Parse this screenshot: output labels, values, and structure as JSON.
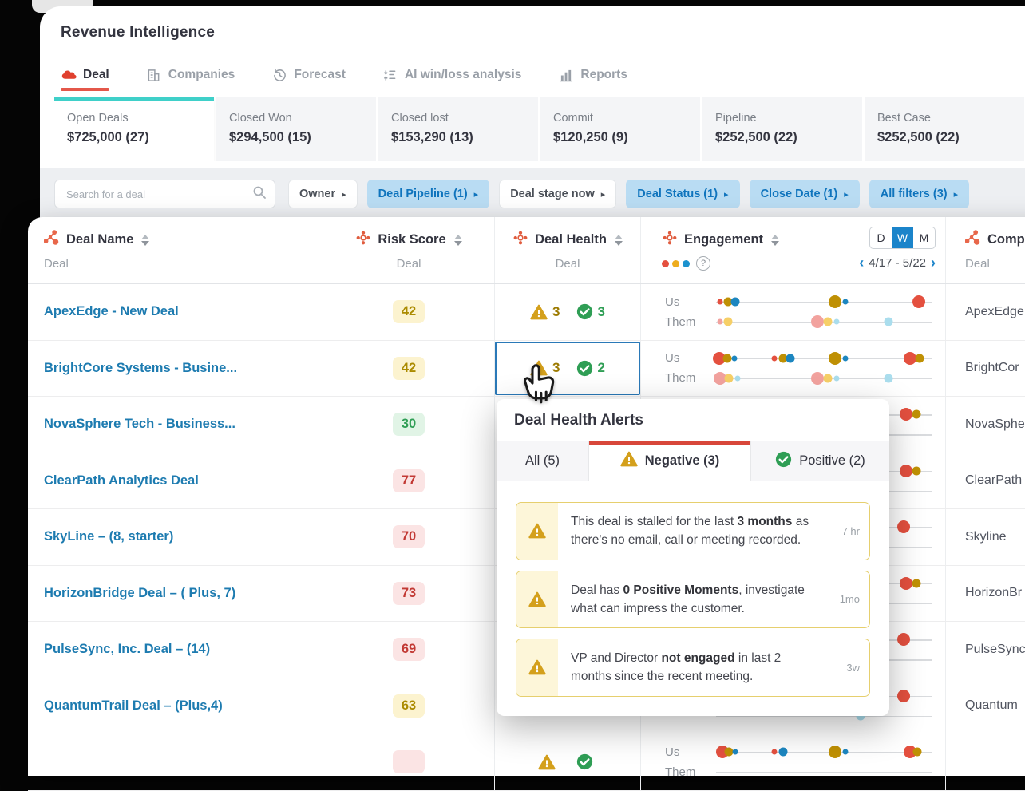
{
  "app": {
    "title": "Revenue Intelligence"
  },
  "tabs": [
    {
      "label": "Deal",
      "icon": "deal-icon",
      "active": true
    },
    {
      "label": "Companies",
      "icon": "companies-icon",
      "active": false
    },
    {
      "label": "Forecast",
      "icon": "forecast-icon",
      "active": false
    },
    {
      "label": "AI win/loss analysis",
      "icon": "ai-winloss-icon",
      "active": false
    },
    {
      "label": "Reports",
      "icon": "reports-icon",
      "active": false
    }
  ],
  "summary_cards": [
    {
      "label": "Open Deals",
      "value": "$725,000 (27)",
      "active": true
    },
    {
      "label": "Closed Won",
      "value": "$294,500 (15)",
      "active": false
    },
    {
      "label": "Closed lost",
      "value": "$153,290 (13)",
      "active": false
    },
    {
      "label": "Commit",
      "value": "$120,250 (9)",
      "active": false
    },
    {
      "label": "Pipeline",
      "value": "$252,500 (22)",
      "active": false
    },
    {
      "label": "Best Case",
      "value": "$252,500 (22)",
      "active": false
    }
  ],
  "filters": {
    "search_placeholder": "Search for a deal",
    "buttons": [
      {
        "label": "Owner",
        "active": false
      },
      {
        "label": "Deal Pipeline (1)",
        "active": true
      },
      {
        "label": "Deal stage now",
        "active": false
      },
      {
        "label": "Deal Status (1)",
        "active": true
      },
      {
        "label": "Close Date (1)",
        "active": true
      },
      {
        "label": "All filters (3)",
        "active": true
      }
    ]
  },
  "table": {
    "columns": [
      {
        "title": "Deal Name",
        "subtitle": "Deal"
      },
      {
        "title": "Risk Score",
        "subtitle": "Deal"
      },
      {
        "title": "Deal Health",
        "subtitle": "Deal"
      },
      {
        "title": "Engagement",
        "subtitle": ""
      },
      {
        "title": "Comp",
        "subtitle": "Deal"
      }
    ],
    "engagement_controls": {
      "period_options": [
        "D",
        "W",
        "M"
      ],
      "selected_period": "W",
      "date_range": "4/17 - 5/22",
      "prev": "‹",
      "next": "›",
      "help": "?"
    },
    "engagement_labels": {
      "us": "Us",
      "them": "Them"
    },
    "dot_colors": {
      "red": "#e4503f",
      "olive": "#bf9004",
      "blue": "#1c86c0",
      "pink": "#f2a29e",
      "yellow": "#f6cf67",
      "lblue": "#aadded"
    },
    "dot_sizes": {
      "s": 7,
      "m": 11,
      "l": 16
    },
    "legend_colors": [
      "#e4503f",
      "#eead1e",
      "#1c92cf"
    ],
    "rows": [
      {
        "deal_name": "ApexEdge - New Deal",
        "risk": {
          "value": "42",
          "level": "yellow"
        },
        "health": {
          "negative": "3",
          "positive": "3"
        },
        "selected": false,
        "company": "ApexEdge",
        "us": [
          {
            "x": 0.02,
            "c": "red",
            "s": "s"
          },
          {
            "x": 0.055,
            "c": "olive",
            "s": "m"
          },
          {
            "x": 0.09,
            "c": "blue",
            "s": "m"
          },
          {
            "x": 0.55,
            "c": "olive",
            "s": "l"
          },
          {
            "x": 0.6,
            "c": "blue",
            "s": "s"
          },
          {
            "x": 0.94,
            "c": "red",
            "s": "l"
          }
        ],
        "them": [
          {
            "x": 0.02,
            "c": "pink",
            "s": "s"
          },
          {
            "x": 0.055,
            "c": "yellow",
            "s": "m"
          },
          {
            "x": 0.47,
            "c": "pink",
            "s": "l"
          },
          {
            "x": 0.52,
            "c": "yellow",
            "s": "m"
          },
          {
            "x": 0.56,
            "c": "lblue",
            "s": "s"
          },
          {
            "x": 0.8,
            "c": "lblue",
            "s": "m"
          }
        ]
      },
      {
        "deal_name": "BrightCore Systems - Busine...",
        "risk": {
          "value": "42",
          "level": "yellow"
        },
        "health": {
          "negative": "3",
          "positive": "2"
        },
        "selected": true,
        "company": "BrightCor",
        "us": [
          {
            "x": 0.015,
            "c": "red",
            "s": "l"
          },
          {
            "x": 0.05,
            "c": "olive",
            "s": "m"
          },
          {
            "x": 0.085,
            "c": "blue",
            "s": "s"
          },
          {
            "x": 0.27,
            "c": "red",
            "s": "s"
          },
          {
            "x": 0.31,
            "c": "olive",
            "s": "m"
          },
          {
            "x": 0.345,
            "c": "blue",
            "s": "m"
          },
          {
            "x": 0.55,
            "c": "olive",
            "s": "l"
          },
          {
            "x": 0.6,
            "c": "blue",
            "s": "s"
          },
          {
            "x": 0.9,
            "c": "red",
            "s": "l"
          },
          {
            "x": 0.945,
            "c": "olive",
            "s": "m"
          }
        ],
        "them": [
          {
            "x": 0.02,
            "c": "pink",
            "s": "l"
          },
          {
            "x": 0.06,
            "c": "yellow",
            "s": "m"
          },
          {
            "x": 0.1,
            "c": "lblue",
            "s": "s"
          },
          {
            "x": 0.47,
            "c": "pink",
            "s": "l"
          },
          {
            "x": 0.52,
            "c": "yellow",
            "s": "m"
          },
          {
            "x": 0.56,
            "c": "lblue",
            "s": "s"
          },
          {
            "x": 0.8,
            "c": "lblue",
            "s": "m"
          }
        ]
      },
      {
        "deal_name": "NovaSphere Tech - Business...",
        "risk": {
          "value": "30",
          "level": "green"
        },
        "health": null,
        "selected": false,
        "company": "NovaSphe",
        "us": [
          {
            "x": 0.88,
            "c": "red",
            "s": "l"
          },
          {
            "x": 0.93,
            "c": "olive",
            "s": "m"
          }
        ],
        "them": []
      },
      {
        "deal_name": "ClearPath Analytics Deal",
        "risk": {
          "value": "77",
          "level": "red"
        },
        "health": null,
        "selected": false,
        "company": "ClearPath",
        "us": [
          {
            "x": 0.88,
            "c": "red",
            "s": "l"
          },
          {
            "x": 0.93,
            "c": "olive",
            "s": "m"
          }
        ],
        "them": []
      },
      {
        "deal_name": "SkyLine – (8, starter)",
        "risk": {
          "value": "70",
          "level": "red"
        },
        "health": null,
        "selected": false,
        "company": "Skyline",
        "us": [
          {
            "x": 0.87,
            "c": "red",
            "s": "l"
          }
        ],
        "them": []
      },
      {
        "deal_name": "HorizonBridge Deal – ( Plus, 7)",
        "risk": {
          "value": "73",
          "level": "red"
        },
        "health": null,
        "selected": false,
        "company": "HorizonBr",
        "us": [
          {
            "x": 0.88,
            "c": "red",
            "s": "l"
          },
          {
            "x": 0.93,
            "c": "olive",
            "s": "m"
          }
        ],
        "them": []
      },
      {
        "deal_name": "PulseSync, Inc. Deal – (14)",
        "risk": {
          "value": "69",
          "level": "red"
        },
        "health": null,
        "selected": false,
        "company": "PulseSync",
        "us": [
          {
            "x": 0.87,
            "c": "red",
            "s": "l"
          }
        ],
        "them": []
      },
      {
        "deal_name": "QuantumTrail Deal – (Plus,4)",
        "risk": {
          "value": "63",
          "level": "yellow"
        },
        "health": null,
        "selected": false,
        "company": "Quantum",
        "us": [
          {
            "x": 0.87,
            "c": "red",
            "s": "l"
          }
        ],
        "them": [
          {
            "x": 0.67,
            "c": "lblue",
            "s": "m"
          }
        ]
      },
      {
        "deal_name": "",
        "risk": {
          "value": "",
          "level": "red"
        },
        "health": {
          "negative": "",
          "positive": ""
        },
        "selected": false,
        "company": "",
        "us": [
          {
            "x": 0.03,
            "c": "red",
            "s": "l"
          },
          {
            "x": 0.06,
            "c": "olive",
            "s": "m"
          },
          {
            "x": 0.09,
            "c": "blue",
            "s": "s"
          },
          {
            "x": 0.27,
            "c": "red",
            "s": "s"
          },
          {
            "x": 0.31,
            "c": "blue",
            "s": "m"
          },
          {
            "x": 0.55,
            "c": "olive",
            "s": "l"
          },
          {
            "x": 0.6,
            "c": "blue",
            "s": "s"
          },
          {
            "x": 0.9,
            "c": "red",
            "s": "l"
          },
          {
            "x": 0.935,
            "c": "olive",
            "s": "m"
          }
        ],
        "them": []
      }
    ]
  },
  "popup": {
    "title": "Deal Health Alerts",
    "tabs": [
      {
        "label": "All (5)",
        "icon": null,
        "active": false
      },
      {
        "label": "Negative (3)",
        "icon": "warning",
        "active": true
      },
      {
        "label": "Positive (2)",
        "icon": "check",
        "active": false
      }
    ],
    "alerts": [
      {
        "segments": [
          {
            "t": "This deal is stalled for the last "
          },
          {
            "t": "3 months",
            "b": true
          },
          {
            "t": " as there's no email, call or meeting recorded."
          }
        ],
        "age": "7 hr"
      },
      {
        "segments": [
          {
            "t": "Deal has "
          },
          {
            "t": "0 Positive Moments",
            "b": true
          },
          {
            "t": ", investigate what can impress the customer."
          }
        ],
        "age": "1mo"
      },
      {
        "segments": [
          {
            "t": "VP and Director "
          },
          {
            "t": "not engaged",
            "b": true
          },
          {
            "t": " in last 2 months since the recent meeting."
          }
        ],
        "age": "3w"
      }
    ]
  },
  "colors": {
    "accent_teal": "#3fd0c9",
    "accent_red": "#e4574a",
    "filter_chip_bg": "#b9dcf3",
    "filter_chip_text": "#0f74bd",
    "link_blue": "#1d7bb0",
    "toggle_blue": "#1b84ca",
    "warning_yellow": "#d4a01c",
    "positive_green": "#2f9e55"
  }
}
